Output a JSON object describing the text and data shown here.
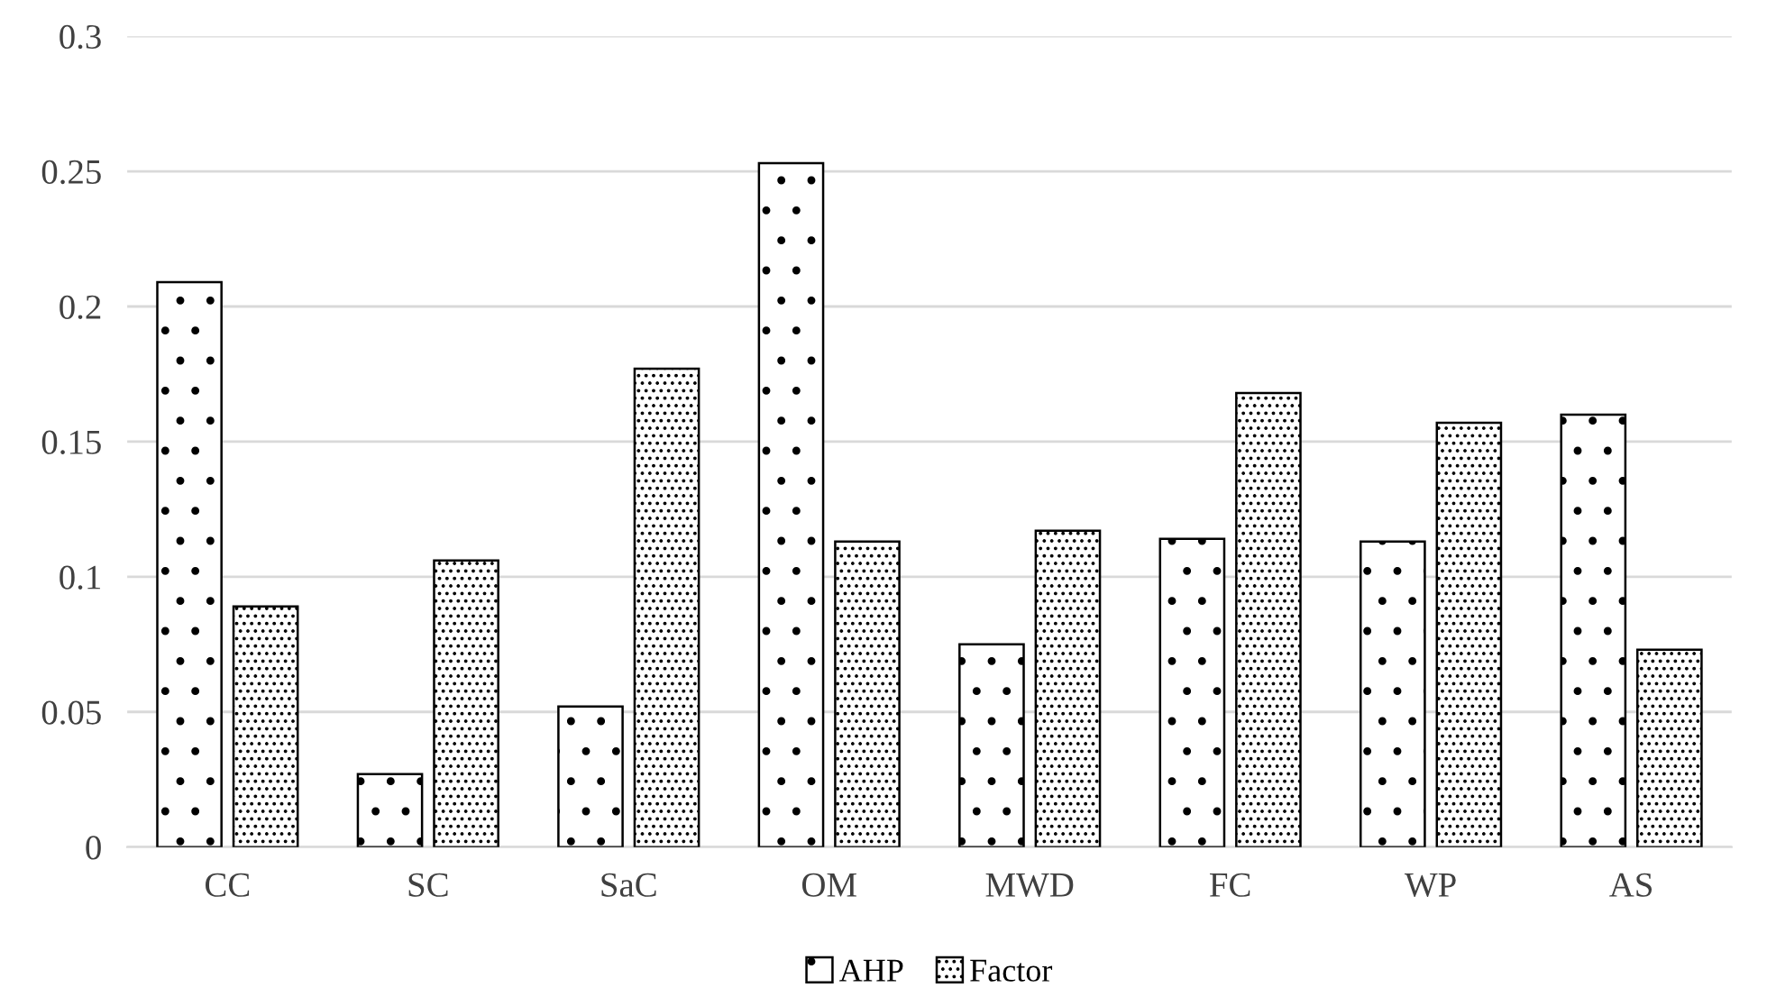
{
  "chart_data": {
    "type": "bar",
    "categories": [
      "CC",
      "SC",
      "SaC",
      "OM",
      "MWD",
      "FC",
      "WP",
      "AS"
    ],
    "series": [
      {
        "name": "AHP",
        "color": "#000000",
        "values": [
          0.209,
          0.027,
          0.052,
          0.253,
          0.075,
          0.114,
          0.113,
          0.16
        ]
      },
      {
        "name": "Factor",
        "color": "#000000",
        "values": [
          0.089,
          0.106,
          0.177,
          0.113,
          0.117,
          0.168,
          0.157,
          0.073
        ]
      }
    ],
    "ylim": [
      0,
      0.3
    ],
    "yticks": [
      0,
      0.05,
      0.1,
      0.15,
      0.2,
      0.25,
      0.3
    ],
    "grid": "y",
    "legend": "bottom"
  }
}
